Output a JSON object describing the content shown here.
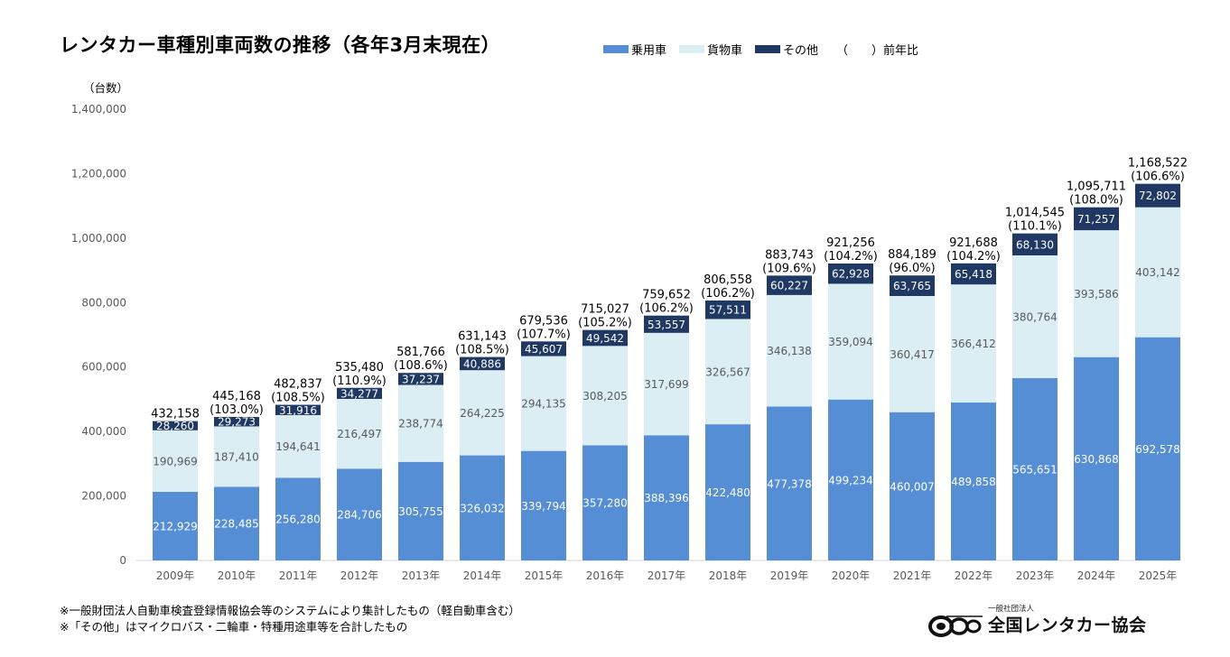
{
  "title": "レンタカー車種別車両数の推移（各年3月末現在）",
  "legend": {
    "items": [
      {
        "label": "乗用車",
        "color": "#558ed5"
      },
      {
        "label": "貨物車",
        "color": "#dbeef4"
      },
      {
        "label": "その他",
        "color": "#1f3864"
      }
    ],
    "yoy_label": "（　　）前年比"
  },
  "notes": [
    "※一般財団法人自動車検査登録情報協会等のシステムにより集計したもの（軽自動車含む）",
    "※「その他」はマイクロバス・二輪車・特種用途車等を合計したもの"
  ],
  "logo": {
    "small_text": "一般社団法人",
    "main_text": "全国レンタカー協会",
    "icon": "car-wheels-logo-icon"
  },
  "chart_data": {
    "type": "bar",
    "stacked": true,
    "ylabel": "（台数）",
    "ylim": [
      0,
      1400000
    ],
    "yticks": [
      "0",
      "200,000",
      "400,000",
      "600,000",
      "800,000",
      "1,000,000",
      "1,200,000",
      "1,400,000"
    ],
    "grid": false,
    "legend_position": "top",
    "categories": [
      "2009年",
      "2010年",
      "2011年",
      "2012年",
      "2013年",
      "2014年",
      "2015年",
      "2016年",
      "2017年",
      "2018年",
      "2019年",
      "2020年",
      "2021年",
      "2022年",
      "2023年",
      "2024年",
      "2025年"
    ],
    "series": [
      {
        "name": "乗用車",
        "color": "#558ed5",
        "values": [
          212929,
          228485,
          256280,
          284706,
          305755,
          326032,
          339794,
          357280,
          388396,
          422480,
          477378,
          499234,
          460007,
          489858,
          565651,
          630868,
          692578
        ],
        "labels": [
          "212,929",
          "228,485",
          "256,280",
          "284,706",
          "305,755",
          "326,032",
          "339,794",
          "357,280",
          "388,396",
          "422,480",
          "477,378",
          "499,234",
          "460,007",
          "489,858",
          "565,651",
          "630,868",
          "692,578"
        ]
      },
      {
        "name": "貨物車",
        "color": "#dbeef4",
        "values": [
          190969,
          187410,
          194641,
          216497,
          238774,
          264225,
          294135,
          308205,
          317699,
          326567,
          346138,
          359094,
          360417,
          366412,
          380764,
          393586,
          403142
        ],
        "labels": [
          "190,969",
          "187,410",
          "194,641",
          "216,497",
          "238,774",
          "264,225",
          "294,135",
          "308,205",
          "317,699",
          "326,567",
          "346,138",
          "359,094",
          "360,417",
          "366,412",
          "380,764",
          "393,586",
          "403,142"
        ]
      },
      {
        "name": "その他",
        "color": "#1f3864",
        "values": [
          28260,
          29273,
          31916,
          34277,
          37237,
          40886,
          45607,
          49542,
          53557,
          57511,
          60227,
          62928,
          63765,
          65418,
          68130,
          71257,
          72802
        ],
        "labels": [
          "28,260",
          "29,273",
          "31,916",
          "34,277",
          "37,237",
          "40,886",
          "45,607",
          "49,542",
          "53,557",
          "57,511",
          "60,227",
          "62,928",
          "63,765",
          "65,418",
          "68,130",
          "71,257",
          "72,802"
        ]
      }
    ],
    "totals": [
      432158,
      445168,
      482837,
      535480,
      581766,
      631143,
      679536,
      715027,
      759652,
      806558,
      883743,
      921256,
      884189,
      921688,
      1014545,
      1095711,
      1168522
    ],
    "total_labels": [
      "432,158",
      "445,168",
      "482,837",
      "535,480",
      "581,766",
      "631,143",
      "679,536",
      "715,027",
      "759,652",
      "806,558",
      "883,743",
      "921,256",
      "884,189",
      "921,688",
      "1,014,545",
      "1,095,711",
      "1,168,522"
    ],
    "yoy_labels": [
      "",
      "(103.0%)",
      "(108.5%)",
      "(110.9%)",
      "(108.6%)",
      "(108.5%)",
      "(107.7%)",
      "(105.2%)",
      "(106.2%)",
      "(106.2%)",
      "(109.6%)",
      "(104.2%)",
      "(96.0%)",
      "(104.2%)",
      "(110.1%)",
      "(108.0%)",
      "(106.6%)"
    ]
  }
}
